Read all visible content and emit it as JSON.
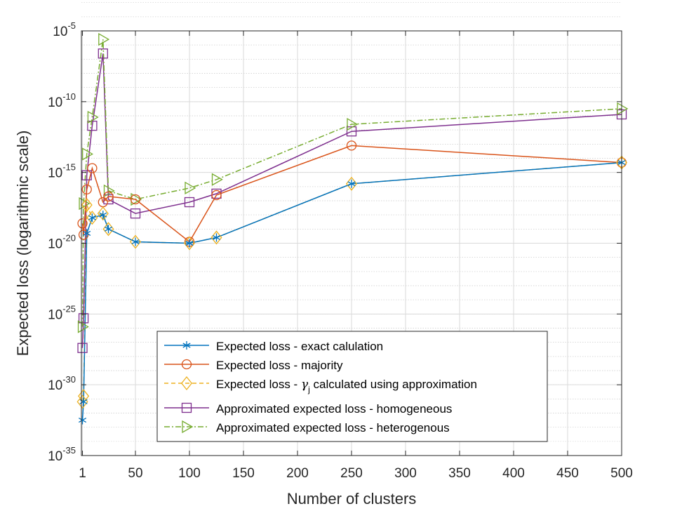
{
  "chart_data": {
    "type": "line",
    "title": "",
    "xlabel": "Number of clusters",
    "ylabel": "Expected loss (logarithmic scale)",
    "xscale": "linear",
    "yscale": "log",
    "xlim": [
      0,
      500
    ],
    "ylim_exponent": [
      -35,
      -5
    ],
    "xticks": [
      1,
      50,
      100,
      150,
      200,
      250,
      300,
      350,
      400,
      450,
      500
    ],
    "xtick_labels": [
      "1",
      "50",
      "100",
      "150",
      "200",
      "250",
      "300",
      "350",
      "400",
      "450",
      "500"
    ],
    "yticks_exponent": [
      -35,
      -30,
      -25,
      -20,
      -15,
      -10,
      -5
    ],
    "ytick_base": "10",
    "grid": true,
    "minor_grid": true,
    "legend_position": "bottom-center",
    "x": [
      1,
      2,
      5,
      10,
      20,
      25,
      50,
      100,
      125,
      250,
      500
    ],
    "series": [
      {
        "name": "Expected loss - exact calulation",
        "color": "#0072BD",
        "line": "solid",
        "marker": "asterisk",
        "log10_values": [
          -32.5,
          -31.2,
          -19.3,
          -18.2,
          -18.0,
          -19.0,
          -19.9,
          -20.0,
          -19.6,
          -15.8,
          -14.3
        ]
      },
      {
        "name": "Expected loss - majority",
        "color": "#D95319",
        "line": "solid",
        "marker": "circle",
        "log10_values": [
          -18.6,
          -19.4,
          -16.2,
          -14.7,
          -17.1,
          -16.7,
          -16.9,
          -19.9,
          -16.6,
          -13.1,
          -14.3
        ]
      },
      {
        "name": "Expected loss - γj calculated using approximation",
        "label_parts": {
          "before": "Expected loss - ",
          "symbol": "γ",
          "subscript": "j",
          "after": " calculated using approximation"
        },
        "color": "#EDB120",
        "line": "dashed",
        "marker": "diamond",
        "log10_values": [
          -31.2,
          -30.8,
          -17.3,
          -18.2,
          -17.9,
          -19.0,
          -19.9,
          -20.0,
          -19.6,
          -15.8,
          -14.3
        ]
      },
      {
        "name": "Approximated expected loss - homogeneous",
        "color": "#7E2F8E",
        "line": "solid",
        "marker": "square",
        "log10_values": [
          -27.4,
          -25.3,
          -15.2,
          -11.7,
          -6.6,
          -16.9,
          -17.9,
          -17.1,
          -16.5,
          -12.1,
          -10.9
        ]
      },
      {
        "name": "Approximated expected loss - heterogenous",
        "color": "#77AC30",
        "line": "dashdot",
        "marker": "triangle-right",
        "log10_values": [
          -25.9,
          -17.2,
          -13.7,
          -11.1,
          -5.6,
          -16.3,
          -16.9,
          -16.1,
          -15.5,
          -11.6,
          -10.5
        ]
      }
    ]
  }
}
